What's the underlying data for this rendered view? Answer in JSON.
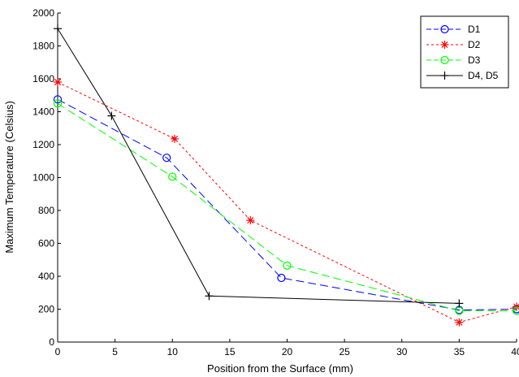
{
  "chart_data": {
    "type": "line",
    "xlabel": "Position from the Surface (mm)",
    "ylabel": "Maximum Temperature (Celsius)",
    "xlim": [
      0,
      40
    ],
    "ylim": [
      0,
      2000
    ],
    "xticks": [
      0,
      5,
      10,
      15,
      20,
      25,
      30,
      35,
      40
    ],
    "yticks": [
      0,
      200,
      400,
      600,
      800,
      1000,
      1200,
      1400,
      1600,
      1800,
      2000
    ],
    "grid": false,
    "legend_position": "top-right",
    "series": [
      {
        "name": "D1",
        "color": "#0000ff",
        "line_style": "dashed",
        "marker": "circle",
        "x": [
          0,
          9.5,
          19.5,
          35,
          40
        ],
        "y": [
          1475,
          1120,
          390,
          195,
          200
        ]
      },
      {
        "name": "D2",
        "color": "#ff0000",
        "line_style": "dotted",
        "marker": "star",
        "x": [
          0,
          10.2,
          16.8,
          35,
          40
        ],
        "y": [
          1580,
          1235,
          740,
          120,
          215
        ]
      },
      {
        "name": "D3",
        "color": "#00ff00",
        "line_style": "dashed",
        "marker": "circle",
        "x": [
          0,
          10,
          20,
          35,
          40
        ],
        "y": [
          1450,
          1005,
          465,
          190,
          190
        ]
      },
      {
        "name": "D4, D5",
        "color": "#000000",
        "line_style": "solid",
        "marker": "plus",
        "x": [
          0,
          4.7,
          13.2,
          35
        ],
        "y": [
          1905,
          1375,
          280,
          235
        ]
      }
    ]
  }
}
